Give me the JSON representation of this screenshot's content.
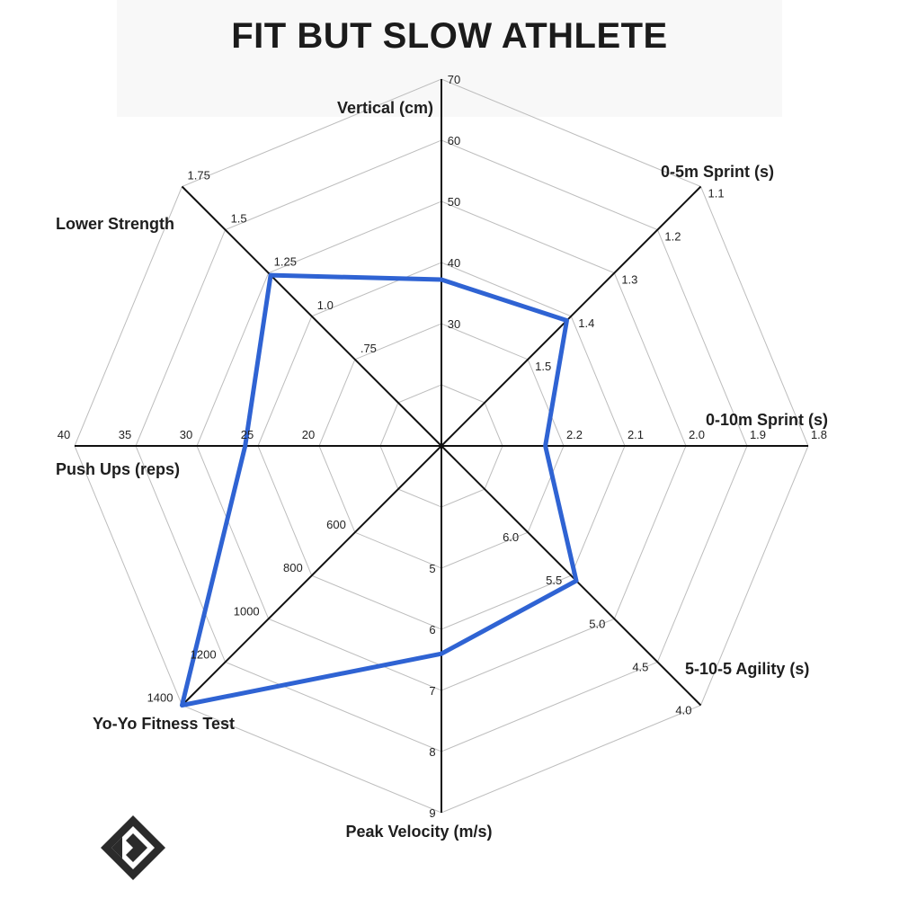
{
  "header": {
    "title": "FIT BUT SLOW ATHLETE"
  },
  "chart_data": {
    "type": "radar",
    "title": "FIT BUT SLOW ATHLETE",
    "levels": 6,
    "axes": [
      {
        "label": "Vertical (cm)",
        "ticks": [
          "30",
          "40",
          "50",
          "60",
          "70"
        ],
        "value_level": 2.72
      },
      {
        "label": "0-5m Sprint (s)",
        "ticks": [
          "1.5",
          "1.4",
          "1.3",
          "1.2",
          "1.1"
        ],
        "value_level": 2.9
      },
      {
        "label": "0-10m Sprint (s)",
        "ticks": [
          "2.2",
          "2.1",
          "2.0",
          "1.9",
          "1.8"
        ],
        "value_level": 1.7
      },
      {
        "label": "5-10-5 Agility (s)",
        "ticks": [
          "6.0",
          "5.5",
          "5.0",
          "4.5",
          "4.0"
        ],
        "value_level": 3.12
      },
      {
        "label": "Peak Velocity (m/s)",
        "ticks": [
          "5",
          "6",
          "7",
          "8",
          "9"
        ],
        "value_level": 3.4
      },
      {
        "label": "Yo-Yo Fitness Test",
        "ticks": [
          "600",
          "800",
          "1000",
          "1200",
          "1400"
        ],
        "value_level": 6.0
      },
      {
        "label": "Push Ups (reps)",
        "ticks": [
          "20",
          "25",
          "30",
          "35",
          "40"
        ],
        "value_level": 3.21
      },
      {
        "label": "Lower Strength",
        "ticks": [
          ".75",
          "1.0",
          "1.25",
          "1.5",
          "1.75"
        ],
        "value_level": 3.95
      }
    ],
    "colors": {
      "series": "#2f63d3",
      "axis": "#111111",
      "grid": "#bdbdbd"
    }
  },
  "branding": {
    "logo_icon": "diamond-logo-icon"
  }
}
